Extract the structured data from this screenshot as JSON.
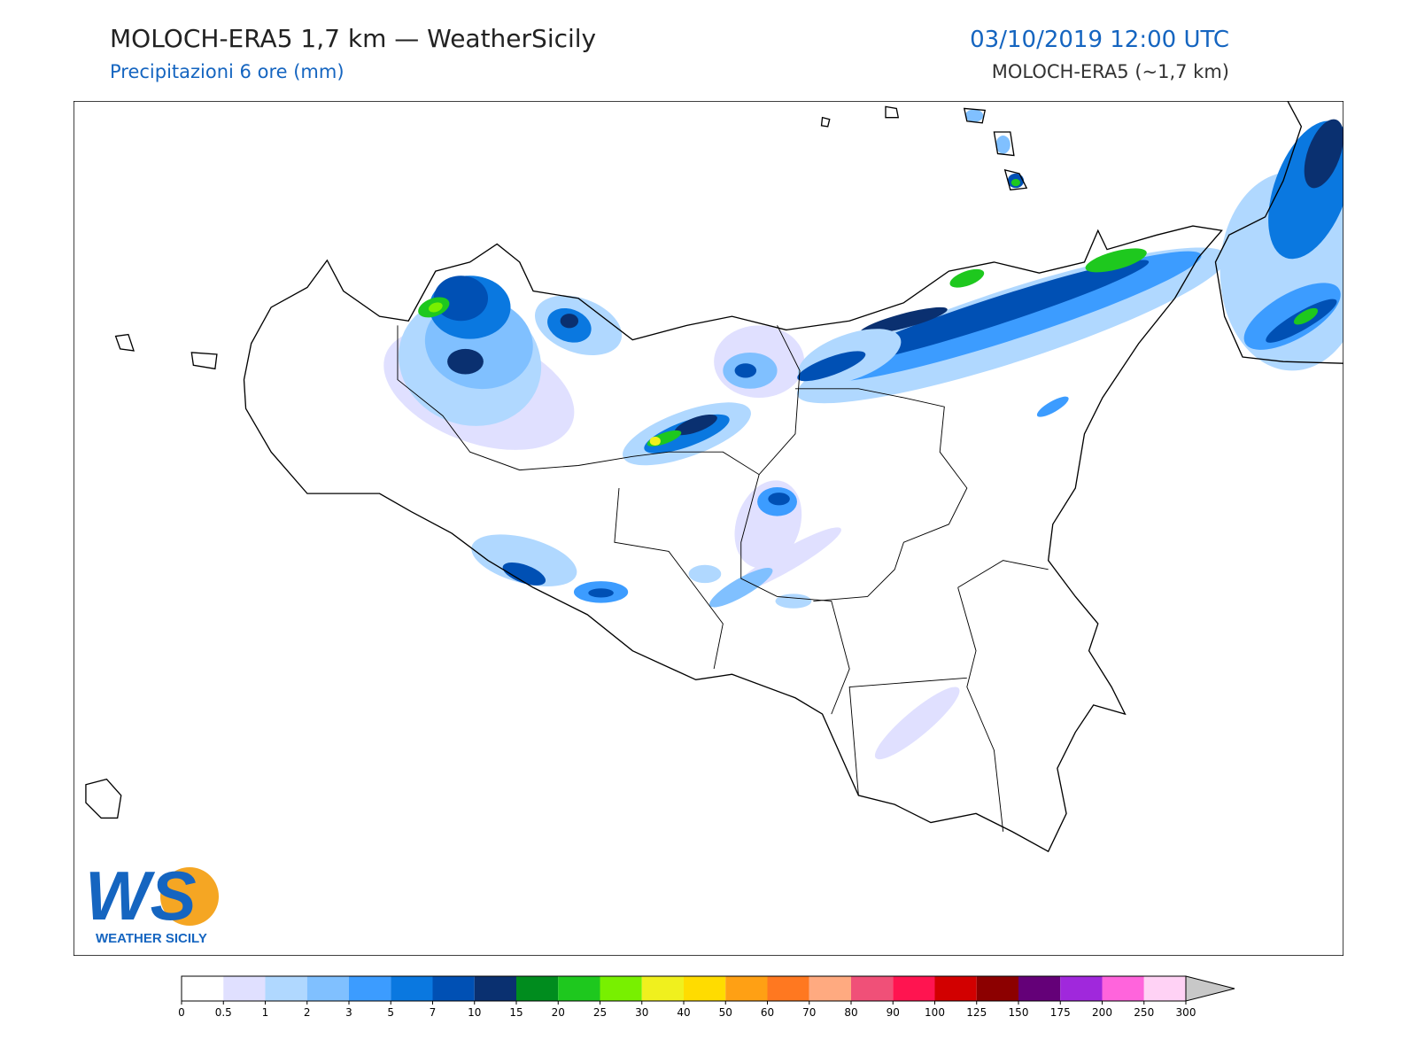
{
  "header": {
    "title": "MOLOCH-ERA5 1,7 km — WeatherSicily",
    "subtitle": "Precipitazioni 6 ore (mm)",
    "datetime": "03/10/2019 12:00 UTC",
    "model": "MOLOCH-ERA5 (~1,7 km)"
  },
  "logo": {
    "mark": "WS",
    "name": "WEATHER SICILY"
  },
  "colorbar": {
    "ticks": [
      0,
      0.5,
      1,
      2,
      3,
      5,
      7,
      10,
      15,
      20,
      25,
      30,
      40,
      50,
      60,
      70,
      80,
      90,
      100,
      125,
      150,
      175,
      200,
      250,
      300
    ],
    "colors": [
      "#ffffff",
      "#e0e0ff",
      "#b0d8ff",
      "#80c0ff",
      "#3c9cff",
      "#0a78e0",
      "#0050b4",
      "#0a3070",
      "#008c1e",
      "#1ec81e",
      "#78f000",
      "#f0f01e",
      "#ffdc00",
      "#ffa014",
      "#ff7820",
      "#ffaa80",
      "#f05078",
      "#ff1450",
      "#d20000",
      "#8c0000",
      "#640078",
      "#a028dc",
      "#ff64dc",
      "#ffd2f5"
    ],
    "extend_color": "#c8c8c8"
  }
}
